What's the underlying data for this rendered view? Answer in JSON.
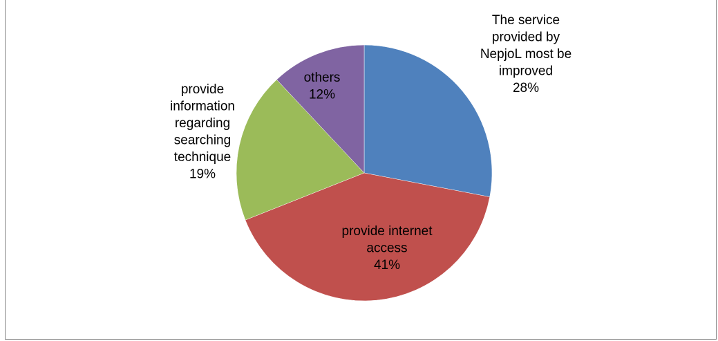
{
  "chart_data": {
    "type": "pie",
    "title": "",
    "slices": [
      {
        "label_lines": [
          "The service",
          "provided by",
          "NepjoL most be",
          "improved"
        ],
        "percent_label": "28%",
        "value": 28,
        "color": "#4F81BD"
      },
      {
        "label_lines": [
          "provide internet",
          "access"
        ],
        "percent_label": "41%",
        "value": 41,
        "color": "#C0504D"
      },
      {
        "label_lines": [
          "provide",
          "information",
          "regarding",
          "searching",
          "technique"
        ],
        "percent_label": "19%",
        "value": 19,
        "color": "#9BBB59"
      },
      {
        "label_lines": [
          "others"
        ],
        "percent_label": "12%",
        "value": 12,
        "color": "#8064A2"
      }
    ],
    "start_angle_deg": 0,
    "direction": "clockwise",
    "legend": "none"
  }
}
